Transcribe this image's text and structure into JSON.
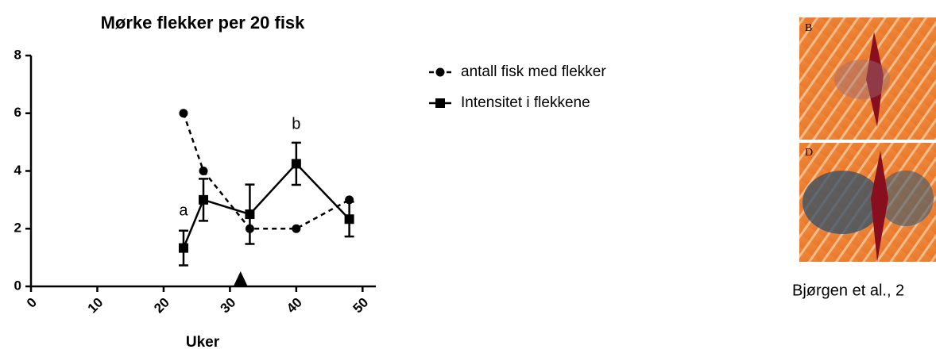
{
  "chart_data": {
    "type": "line",
    "title": "Mørke flekker per 20 fisk",
    "x_label": "Uker",
    "x": [
      23,
      26,
      33,
      40,
      48
    ],
    "series": [
      {
        "name": "antall fisk med flekker",
        "color": "#000000",
        "dash": true,
        "marker": "circle",
        "values": [
          6,
          4,
          2,
          2,
          3
        ]
      },
      {
        "name": "Intensitet i flekkene",
        "color": "#000000",
        "dash": false,
        "marker": "square",
        "values": [
          1.33,
          3,
          2.5,
          4.25,
          2.33
        ],
        "errors": [
          0.6,
          0.73,
          1.03,
          0.73,
          0.6
        ]
      }
    ],
    "xlim": [
      0,
      52
    ],
    "ylim": [
      0,
      8
    ],
    "xticks": [
      0,
      10,
      20,
      30,
      40,
      50
    ],
    "yticks": [
      0,
      2,
      4,
      6,
      8
    ],
    "annotations": [
      {
        "text": "a",
        "x": 23,
        "y": 2.6
      },
      {
        "text": "b",
        "x": 40,
        "y": 5.6
      }
    ],
    "markers": [
      {
        "x": 31.6,
        "y": 0
      }
    ]
  },
  "figure": {
    "panels": [
      "B",
      "D"
    ],
    "caption": "Bjørgen et al., 2"
  }
}
